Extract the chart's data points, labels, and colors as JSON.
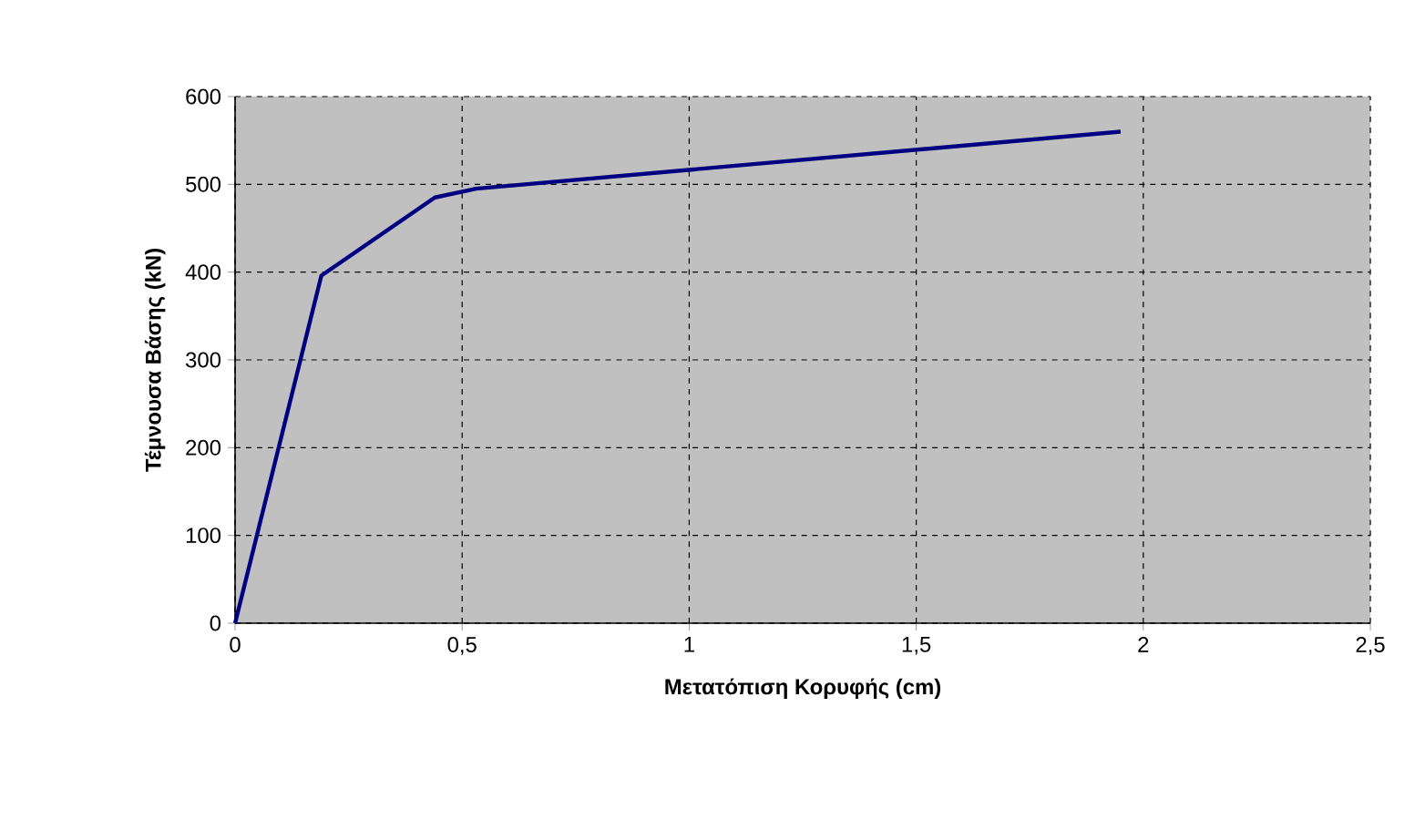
{
  "chart_data": {
    "type": "line",
    "xlabel": "Μετατόπιση Κορυφής (cm)",
    "ylabel": "Τέμνουσα Βάσης (kN)",
    "x": [
      0,
      0.19,
      0.44,
      0.53,
      1.95
    ],
    "series": [
      {
        "color": "#000080",
        "values": [
          0,
          396,
          485,
          495,
          560
        ]
      }
    ],
    "xlim": [
      0,
      2.5
    ],
    "xticks": [
      0,
      {
        "value": 0.5,
        "label": "0,5"
      },
      1,
      {
        "value": 1.5,
        "label": "1,5"
      },
      2,
      {
        "value": 2.5,
        "label": "2,5"
      }
    ],
    "ylim": [
      0,
      600
    ],
    "yticks": [
      0,
      100,
      200,
      300,
      400,
      500,
      600
    ],
    "grid": true,
    "marker": "none",
    "line_style": "solid"
  }
}
